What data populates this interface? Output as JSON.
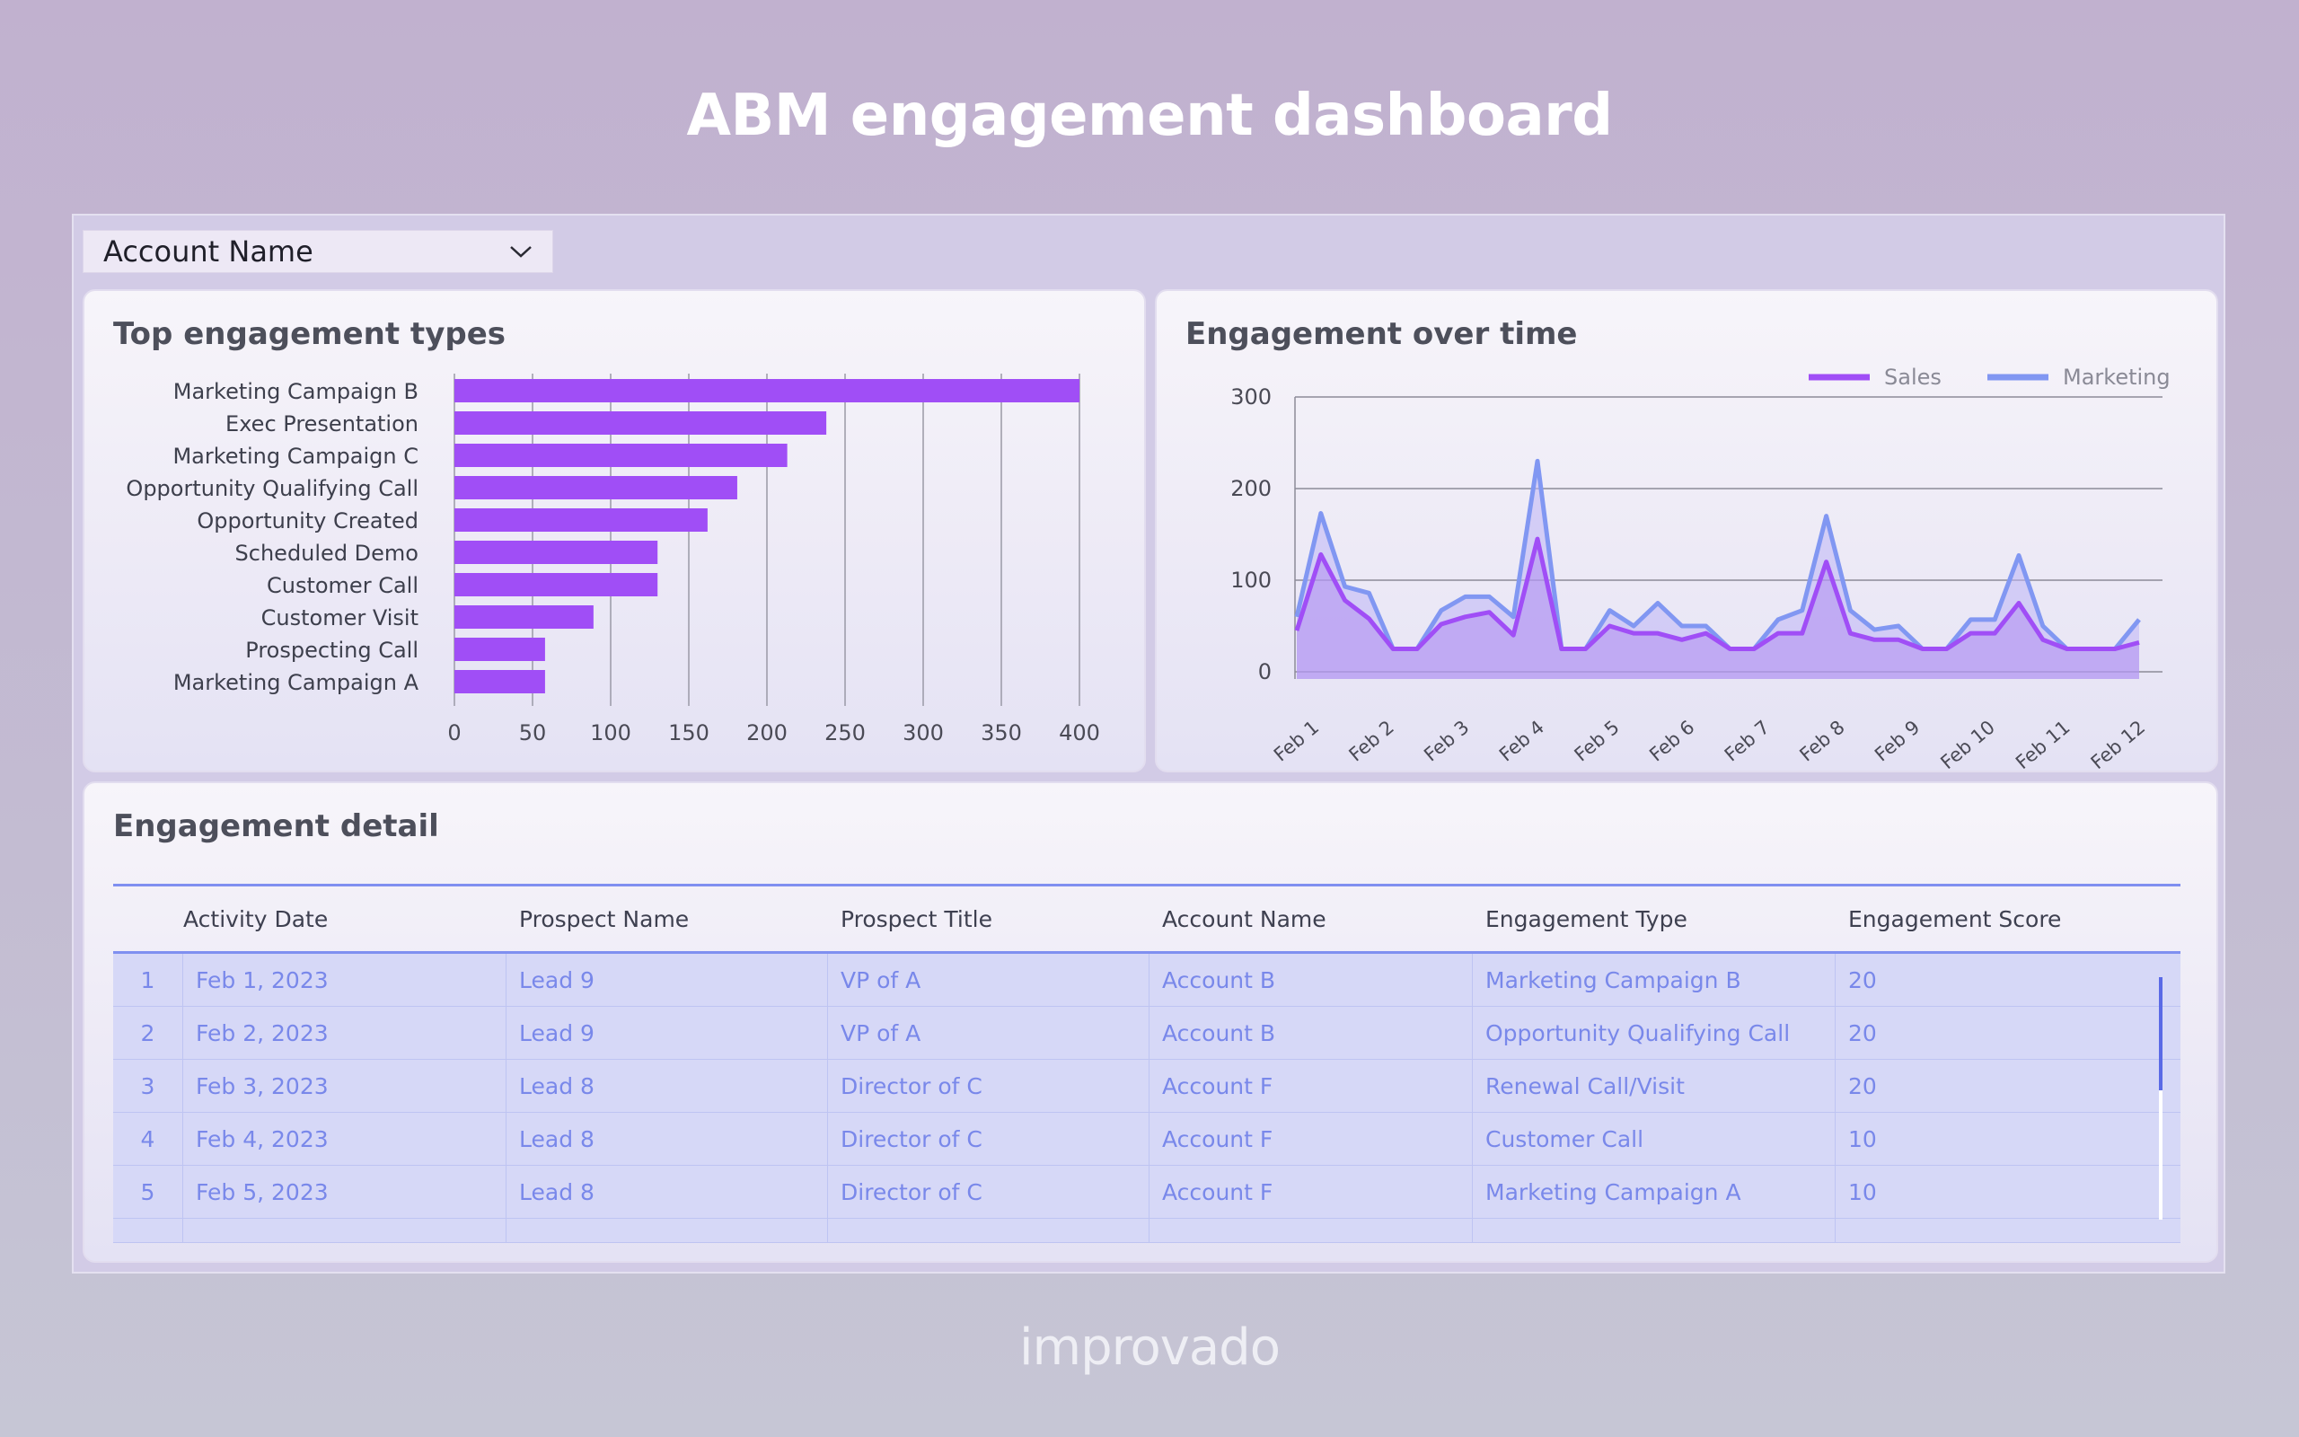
{
  "page": {
    "title": "ABM engagement dashboard",
    "brand": "improvado"
  },
  "filter": {
    "label": "Account Name"
  },
  "colors": {
    "sales": "#a04ef6",
    "marketing": "#8197f2",
    "bar": "#a04ef6",
    "table_text": "#7988ea"
  },
  "bar_card": {
    "title": "Top engagement types"
  },
  "line_card": {
    "title": "Engagement over time"
  },
  "table_card": {
    "title": "Engagement detail"
  },
  "chart_data": [
    {
      "type": "bar",
      "orientation": "horizontal",
      "title": "Top engagement types",
      "categories": [
        "Marketing Campaign B",
        "Exec Presentation",
        "Marketing Campaign C",
        "Opportunity Qualifying Call",
        "Opportunity Created",
        "Scheduled Demo",
        "Customer Call",
        "Customer Visit",
        "Prospecting Call",
        "Marketing Campaign A"
      ],
      "values": [
        400,
        238,
        213,
        181,
        162,
        130,
        130,
        89,
        58,
        58
      ],
      "xlim": [
        0,
        400
      ],
      "ticks": [
        "0",
        "50",
        "100",
        "150",
        "200",
        "250",
        "300",
        "350",
        "400"
      ],
      "grid": true
    },
    {
      "type": "area",
      "title": "Engagement over time",
      "legend": "top-right",
      "ylim": [
        0,
        300
      ],
      "yticks": [
        "300",
        "200",
        "100",
        "0"
      ],
      "xticks": [
        "Feb 1",
        "Feb 2",
        "Feb 3",
        "Feb 4",
        "Feb 5",
        "Feb 6",
        "Feb 7",
        "Feb 8",
        "Feb 9",
        "Feb 10",
        "Feb 11",
        "Feb 12"
      ],
      "series": [
        {
          "name": "Sales",
          "values": [
            45,
            128,
            78,
            58,
            25,
            25,
            52,
            60,
            65,
            40,
            145,
            25,
            25,
            50,
            42,
            42,
            35,
            42,
            25,
            25,
            42,
            42,
            120,
            42,
            35,
            35,
            25,
            25,
            42,
            42,
            75,
            35,
            25,
            25,
            25,
            32
          ]
        },
        {
          "name": "Marketing",
          "values": [
            60,
            173,
            93,
            86,
            25,
            25,
            67,
            82,
            82,
            60,
            230,
            25,
            25,
            67,
            50,
            75,
            50,
            50,
            25,
            25,
            57,
            67,
            170,
            67,
            46,
            50,
            25,
            25,
            57,
            57,
            127,
            50,
            25,
            25,
            25,
            57
          ]
        }
      ]
    }
  ],
  "table": {
    "headers": [
      "Activity Date",
      "Prospect Name",
      "Prospect Title",
      "Account Name",
      "Engagement Type",
      "Engagement Score"
    ],
    "rows": [
      [
        "1",
        "Feb 1, 2023",
        "Lead 9",
        "VP of A",
        "Account B",
        "Marketing Campaign B",
        "20"
      ],
      [
        "2",
        "Feb 2, 2023",
        "Lead 9",
        "VP of A",
        "Account B",
        "Opportunity Qualifying Call",
        "20"
      ],
      [
        "3",
        "Feb 3, 2023",
        "Lead 8",
        "Director of C",
        "Account F",
        "Renewal Call/Visit",
        "20"
      ],
      [
        "4",
        "Feb 4, 2023",
        "Lead 8",
        "Director of C",
        "Account F",
        "Customer Call",
        "10"
      ],
      [
        "5",
        "Feb 5, 2023",
        "Lead 8",
        "Director of C",
        "Account F",
        "Marketing Campaign A",
        "10"
      ]
    ]
  }
}
